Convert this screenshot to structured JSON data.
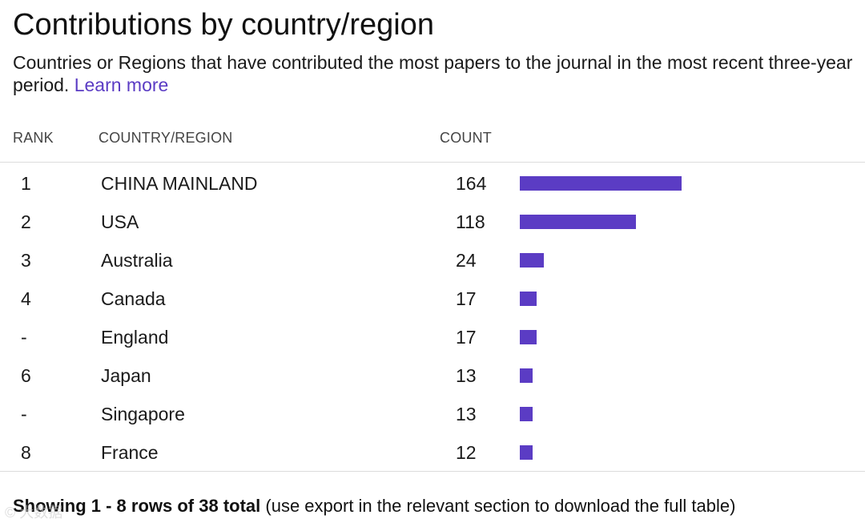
{
  "header": {
    "title": "Contributions by country/region",
    "subtitle": "Countries or Regions that have contributed the most papers to the journal in the most recent three-year period.",
    "learn_more": "Learn more"
  },
  "table": {
    "columns": {
      "rank": "RANK",
      "country": "COUNTRY/REGION",
      "count": "COUNT"
    },
    "max_count": 164,
    "rows": [
      {
        "rank": "1",
        "country": "CHINA MAINLAND",
        "count": "164",
        "value": 164
      },
      {
        "rank": "2",
        "country": "USA",
        "count": "118",
        "value": 118
      },
      {
        "rank": "3",
        "country": "Australia",
        "count": "24",
        "value": 24
      },
      {
        "rank": "4",
        "country": "Canada",
        "count": "17",
        "value": 17
      },
      {
        "rank": "-",
        "country": "England",
        "count": "17",
        "value": 17
      },
      {
        "rank": "6",
        "country": "Japan",
        "count": "13",
        "value": 13
      },
      {
        "rank": "-",
        "country": "Singapore",
        "count": "13",
        "value": 13
      },
      {
        "rank": "8",
        "country": "France",
        "count": "12",
        "value": 12
      }
    ]
  },
  "footer": {
    "showing_bold": "Showing 1 - 8 rows of 38 total",
    "showing_rest": " (use export in the relevant section to download the full table)"
  },
  "watermark": "© 大数据",
  "colors": {
    "bar": "#5b3cc4",
    "link": "#5b3cc4"
  }
}
